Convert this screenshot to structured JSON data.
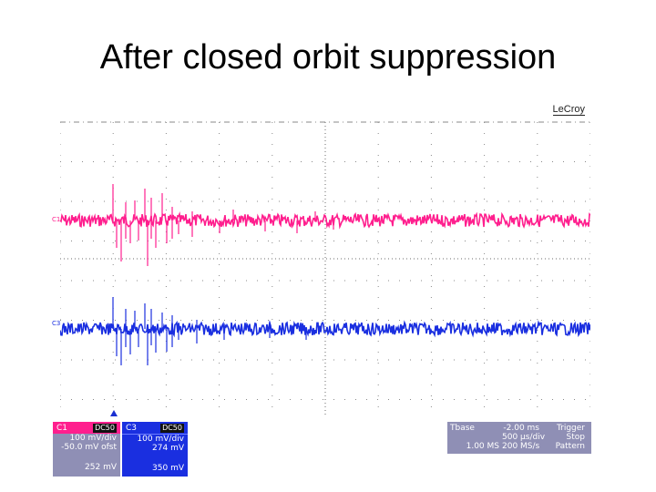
{
  "title": "After closed orbit suppression",
  "scope": {
    "logo": "LeCroy",
    "channel_markers": [
      "C1",
      "C3"
    ],
    "colors": {
      "c1": "#ff1f8e",
      "c3": "#1a2fe0",
      "grid": "#8a8a8a",
      "panel": "#8f8fb5"
    }
  },
  "c1_panel": {
    "label": "C1",
    "badge": "DC50",
    "scale": "100 mV/div",
    "offset": "-50.0 mV ofst",
    "reading": "252 mV"
  },
  "c3_panel": {
    "label": "C3",
    "badge": "DC50",
    "scale": "100 mV/div",
    "offset": "274 mV",
    "reading": "350 mV"
  },
  "timebase": {
    "tbase_label": "Tbase",
    "tbase_value": "-2.00 ms",
    "div_value": "500 µs/div",
    "samples": "1.00 MS",
    "rate": "200 MS/s",
    "trigger_label": "Trigger",
    "trigger_mode": "Stop",
    "trigger_type": "Pattern"
  }
}
